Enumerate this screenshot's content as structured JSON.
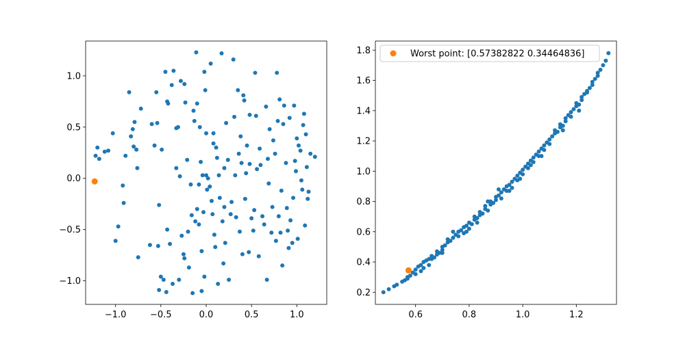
{
  "chart_data": [
    {
      "type": "scatter",
      "xlim": [
        -1.33,
        1.33
      ],
      "ylim": [
        -1.23,
        1.34
      ],
      "xticks": [
        -1.0,
        -0.5,
        0.0,
        0.5,
        1.0
      ],
      "xtick_labels": [
        "−1.0",
        "−0.5",
        "0.0",
        "0.5",
        "1.0"
      ],
      "yticks": [
        -1.0,
        -0.5,
        0.0,
        0.5,
        1.0
      ],
      "ytick_labels": [
        "−1.0",
        "−0.5",
        "0.0",
        "0.5",
        "1.0"
      ],
      "grid": false,
      "colors": {
        "points": "#1f77b4",
        "highlight": "#ff7f0e"
      },
      "points": [
        [
          -1.22,
          0.22
        ],
        [
          -1.2,
          0.3
        ],
        [
          -1.18,
          0.19
        ],
        [
          -1.12,
          0.26
        ],
        [
          -1.08,
          0.27
        ],
        [
          -1.03,
          0.44
        ],
        [
          -1.0,
          -0.61
        ],
        [
          -0.97,
          -0.47
        ],
        [
          -0.92,
          -0.07
        ],
        [
          -0.91,
          -0.24
        ],
        [
          -0.89,
          0.22
        ],
        [
          -0.85,
          0.84
        ],
        [
          -0.83,
          0.41
        ],
        [
          -0.81,
          0.48
        ],
        [
          -0.8,
          0.31
        ],
        [
          -0.79,
          0.55
        ],
        [
          -0.77,
          0.28
        ],
        [
          -0.76,
          0.1
        ],
        [
          -0.75,
          -0.77
        ],
        [
          -0.72,
          0.68
        ],
        [
          -0.62,
          -0.65
        ],
        [
          -0.6,
          0.53
        ],
        [
          -0.57,
          0.32
        ],
        [
          -0.55,
          0.84
        ],
        [
          -0.54,
          0.54
        ],
        [
          -0.53,
          -0.66
        ],
        [
          -0.52,
          -0.26
        ],
        [
          -0.52,
          -1.09
        ],
        [
          -0.5,
          -0.96
        ],
        [
          -0.49,
          0.28
        ],
        [
          -0.47,
          -0.99
        ],
        [
          -0.45,
          1.04
        ],
        [
          -0.44,
          -1.11
        ],
        [
          -0.43,
          0.75
        ],
        [
          -0.43,
          -0.5
        ],
        [
          -0.42,
          0.73
        ],
        [
          -0.4,
          -0.64
        ],
        [
          -0.38,
          0.91
        ],
        [
          -0.37,
          -1.03
        ],
        [
          -0.36,
          1.05
        ],
        [
          -0.33,
          0.49
        ],
        [
          -0.33,
          0.1
        ],
        [
          -0.31,
          0.5
        ],
        [
          -0.3,
          -0.99
        ],
        [
          -0.29,
          0.02
        ],
        [
          -0.28,
          0.95
        ],
        [
          -0.27,
          -0.56
        ],
        [
          -0.25,
          -0.74
        ],
        [
          -0.24,
          -0.78
        ],
        [
          -0.24,
          0.92
        ],
        [
          -0.23,
          0.74
        ],
        [
          -0.21,
          0.18
        ],
        [
          -0.2,
          -0.52
        ],
        [
          -0.19,
          -0.87
        ],
        [
          -0.17,
          -0.06
        ],
        [
          -0.16,
          -0.36
        ],
        [
          -0.15,
          -1.12
        ],
        [
          -0.14,
          0.66
        ],
        [
          -0.13,
          0.56
        ],
        [
          -0.12,
          -0.42
        ],
        [
          -0.11,
          1.23
        ],
        [
          -0.1,
          -0.3
        ],
        [
          -0.1,
          0.73
        ],
        [
          -0.08,
          -0.45
        ],
        [
          -0.08,
          -0.06
        ],
        [
          -0.07,
          0.5
        ],
        [
          -0.06,
          0.16
        ],
        [
          -0.05,
          -0.71
        ],
        [
          -0.05,
          -1.1
        ],
        [
          -0.04,
          0.03
        ],
        [
          -0.03,
          -0.33
        ],
        [
          -0.02,
          1.04
        ],
        [
          -0.02,
          -0.96
        ],
        [
          -0.01,
          0.86
        ],
        [
          0.0,
          0.44
        ],
        [
          0.0,
          0.03
        ],
        [
          0.01,
          -0.11
        ],
        [
          0.02,
          0.0
        ],
        [
          0.04,
          -0.08
        ],
        [
          0.05,
          1.12
        ],
        [
          0.06,
          -0.22
        ],
        [
          0.07,
          -0.35
        ],
        [
          0.08,
          0.44
        ],
        [
          0.08,
          0.34
        ],
        [
          0.09,
          -0.55
        ],
        [
          0.1,
          -0.67
        ],
        [
          0.11,
          0.3
        ],
        [
          0.12,
          0.2
        ],
        [
          0.13,
          -1.03
        ],
        [
          0.14,
          0.03
        ],
        [
          0.15,
          -0.19
        ],
        [
          0.17,
          1.22
        ],
        [
          0.18,
          -0.42
        ],
        [
          0.19,
          -0.83
        ],
        [
          0.2,
          0.1
        ],
        [
          0.2,
          -0.28
        ],
        [
          0.21,
          -0.63
        ],
        [
          0.22,
          0.54
        ],
        [
          0.24,
          0.18
        ],
        [
          0.25,
          -0.99
        ],
        [
          0.27,
          -0.35
        ],
        [
          0.28,
          -0.23
        ],
        [
          0.3,
          1.16
        ],
        [
          0.31,
          0.6
        ],
        [
          0.32,
          0.03
        ],
        [
          0.33,
          -0.38
        ],
        [
          0.35,
          0.86
        ],
        [
          0.36,
          0.24
        ],
        [
          0.37,
          -0.52
        ],
        [
          0.38,
          0.41
        ],
        [
          0.39,
          0.15
        ],
        [
          0.4,
          -0.74
        ],
        [
          0.41,
          0.81
        ],
        [
          0.42,
          0.76
        ],
        [
          0.43,
          -0.2
        ],
        [
          0.44,
          0.05
        ],
        [
          0.45,
          0.32
        ],
        [
          0.47,
          -0.72
        ],
        [
          0.48,
          0.62
        ],
        [
          0.48,
          0.14
        ],
        [
          0.5,
          -0.39
        ],
        [
          0.52,
          -0.51
        ],
        [
          0.53,
          -0.31
        ],
        [
          0.54,
          1.03
        ],
        [
          0.55,
          0.61
        ],
        [
          0.56,
          0.09
        ],
        [
          0.58,
          -0.76
        ],
        [
          0.59,
          0.29
        ],
        [
          0.6,
          0.13
        ],
        [
          0.62,
          -0.37
        ],
        [
          0.64,
          -0.45
        ],
        [
          0.66,
          0.7
        ],
        [
          0.67,
          -0.99
        ],
        [
          0.68,
          0.19
        ],
        [
          0.69,
          -0.05
        ],
        [
          0.7,
          0.48
        ],
        [
          0.72,
          -0.53
        ],
        [
          0.73,
          -0.28
        ],
        [
          0.74,
          0.37
        ],
        [
          0.76,
          0.24
        ],
        [
          0.77,
          -0.61
        ],
        [
          0.78,
          1.03
        ],
        [
          0.79,
          0.56
        ],
        [
          0.8,
          -0.37
        ],
        [
          0.81,
          0.77
        ],
        [
          0.82,
          -0.53
        ],
        [
          0.83,
          -0.12
        ],
        [
          0.84,
          -0.85
        ],
        [
          0.85,
          0.53
        ],
        [
          0.86,
          0.71
        ],
        [
          0.88,
          0.15
        ],
        [
          0.89,
          -0.29
        ],
        [
          0.9,
          -0.51
        ],
        [
          0.91,
          -0.68
        ],
        [
          0.92,
          0.59
        ],
        [
          0.93,
          -0.41
        ],
        [
          0.95,
          -0.63
        ],
        [
          0.96,
          -0.19
        ],
        [
          0.97,
          0.71
        ],
        [
          0.98,
          0.17
        ],
        [
          0.99,
          0.07
        ],
        [
          1.0,
          0.39
        ],
        [
          1.01,
          -0.59
        ],
        [
          1.02,
          0.32
        ],
        [
          1.04,
          0.27
        ],
        [
          1.05,
          -0.02
        ],
        [
          1.06,
          -0.11
        ],
        [
          1.07,
          0.52
        ],
        [
          1.08,
          0.63
        ],
        [
          1.09,
          -0.46
        ],
        [
          1.1,
          0.43
        ],
        [
          1.11,
          0.11
        ],
        [
          1.12,
          -0.2
        ],
        [
          1.13,
          -0.13
        ],
        [
          1.15,
          0.24
        ],
        [
          1.2,
          0.21
        ]
      ],
      "highlight": [
        -1.23,
        -0.03
      ]
    },
    {
      "type": "scatter",
      "xlim": [
        0.45,
        1.35
      ],
      "ylim": [
        0.12,
        1.86
      ],
      "xticks": [
        0.6,
        0.8,
        1.0,
        1.2
      ],
      "xtick_labels": [
        "0.6",
        "0.8",
        "1.0",
        "1.2"
      ],
      "yticks": [
        0.2,
        0.4,
        0.6,
        0.8,
        1.0,
        1.2,
        1.4,
        1.6,
        1.8
      ],
      "ytick_labels": [
        "0.2",
        "0.4",
        "0.6",
        "0.8",
        "1.0",
        "1.2",
        "1.4",
        "1.6",
        "1.8"
      ],
      "grid": false,
      "legend": {
        "position": "top-left",
        "label": "Worst point: [0.57382822 0.34464836]"
      },
      "colors": {
        "points": "#1f77b4",
        "highlight": "#ff7f0e"
      },
      "points": [
        [
          0.48,
          0.2
        ],
        [
          0.5,
          0.22
        ],
        [
          0.52,
          0.24
        ],
        [
          0.53,
          0.25
        ],
        [
          0.55,
          0.27
        ],
        [
          0.56,
          0.28
        ],
        [
          0.57,
          0.3
        ],
        [
          0.58,
          0.31
        ],
        [
          0.59,
          0.33
        ],
        [
          0.6,
          0.32
        ],
        [
          0.6,
          0.35
        ],
        [
          0.61,
          0.37
        ],
        [
          0.62,
          0.34
        ],
        [
          0.62,
          0.38
        ],
        [
          0.63,
          0.4
        ],
        [
          0.64,
          0.41
        ],
        [
          0.65,
          0.38
        ],
        [
          0.65,
          0.42
        ],
        [
          0.66,
          0.44
        ],
        [
          0.67,
          0.43
        ],
        [
          0.68,
          0.45
        ],
        [
          0.68,
          0.47
        ],
        [
          0.69,
          0.46
        ],
        [
          0.7,
          0.48
        ],
        [
          0.7,
          0.5
        ],
        [
          0.71,
          0.51
        ],
        [
          0.72,
          0.53
        ],
        [
          0.72,
          0.55
        ],
        [
          0.73,
          0.54
        ],
        [
          0.74,
          0.56
        ],
        [
          0.75,
          0.58
        ],
        [
          0.76,
          0.57
        ],
        [
          0.76,
          0.6
        ],
        [
          0.77,
          0.61
        ],
        [
          0.78,
          0.59
        ],
        [
          0.78,
          0.63
        ],
        [
          0.79,
          0.64
        ],
        [
          0.8,
          0.62
        ],
        [
          0.8,
          0.66
        ],
        [
          0.81,
          0.65
        ],
        [
          0.82,
          0.68
        ],
        [
          0.82,
          0.7
        ],
        [
          0.83,
          0.69
        ],
        [
          0.84,
          0.71
        ],
        [
          0.84,
          0.73
        ],
        [
          0.85,
          0.72
        ],
        [
          0.86,
          0.75
        ],
        [
          0.86,
          0.77
        ],
        [
          0.87,
          0.74
        ],
        [
          0.88,
          0.78
        ],
        [
          0.88,
          0.8
        ],
        [
          0.89,
          0.79
        ],
        [
          0.9,
          0.81
        ],
        [
          0.9,
          0.83
        ],
        [
          0.91,
          0.84
        ],
        [
          0.92,
          0.82
        ],
        [
          0.92,
          0.86
        ],
        [
          0.93,
          0.88
        ],
        [
          0.94,
          0.87
        ],
        [
          0.94,
          0.9
        ],
        [
          0.95,
          0.91
        ],
        [
          0.96,
          0.89
        ],
        [
          0.96,
          0.93
        ],
        [
          0.97,
          0.95
        ],
        [
          0.98,
          0.94
        ],
        [
          0.98,
          0.97
        ],
        [
          0.99,
          0.99
        ],
        [
          1.0,
          0.98
        ],
        [
          1.0,
          1.01
        ],
        [
          1.01,
          1.03
        ],
        [
          1.02,
          1.02
        ],
        [
          1.02,
          1.05
        ],
        [
          1.03,
          1.07
        ],
        [
          1.04,
          1.06
        ],
        [
          1.04,
          1.09
        ],
        [
          1.05,
          1.11
        ],
        [
          1.06,
          1.1
        ],
        [
          1.06,
          1.13
        ],
        [
          1.07,
          1.15
        ],
        [
          1.08,
          1.14
        ],
        [
          1.08,
          1.17
        ],
        [
          1.09,
          1.19
        ],
        [
          1.1,
          1.18
        ],
        [
          1.1,
          1.21
        ],
        [
          1.11,
          1.23
        ],
        [
          1.12,
          1.25
        ],
        [
          1.12,
          1.27
        ],
        [
          1.13,
          1.26
        ],
        [
          1.14,
          1.29
        ],
        [
          1.14,
          1.31
        ],
        [
          1.15,
          1.3
        ],
        [
          1.16,
          1.33
        ],
        [
          1.16,
          1.35
        ],
        [
          1.17,
          1.37
        ],
        [
          1.18,
          1.36
        ],
        [
          1.18,
          1.39
        ],
        [
          1.19,
          1.41
        ],
        [
          1.2,
          1.43
        ],
        [
          1.2,
          1.45
        ],
        [
          1.21,
          1.44
        ],
        [
          1.22,
          1.47
        ],
        [
          1.22,
          1.49
        ],
        [
          1.23,
          1.51
        ],
        [
          1.24,
          1.53
        ],
        [
          1.24,
          1.52
        ],
        [
          1.25,
          1.55
        ],
        [
          1.26,
          1.57
        ],
        [
          1.26,
          1.59
        ],
        [
          1.27,
          1.61
        ],
        [
          1.28,
          1.63
        ],
        [
          1.28,
          1.65
        ],
        [
          1.29,
          1.67
        ],
        [
          1.3,
          1.7
        ],
        [
          1.31,
          1.73
        ],
        [
          1.32,
          1.78
        ],
        [
          0.66,
          0.42
        ],
        [
          0.74,
          0.6
        ],
        [
          0.83,
          0.66
        ],
        [
          0.91,
          0.88
        ],
        [
          0.99,
          0.95
        ],
        [
          1.07,
          1.1
        ],
        [
          1.15,
          1.27
        ],
        [
          1.21,
          1.4
        ],
        [
          0.57,
          0.29
        ],
        [
          0.63,
          0.36
        ],
        [
          0.7,
          0.46
        ],
        [
          0.79,
          0.6
        ],
        [
          0.87,
          0.8
        ],
        [
          0.95,
          0.87
        ],
        [
          1.03,
          1.04
        ]
      ],
      "highlight": [
        0.5738,
        0.3446
      ]
    }
  ]
}
